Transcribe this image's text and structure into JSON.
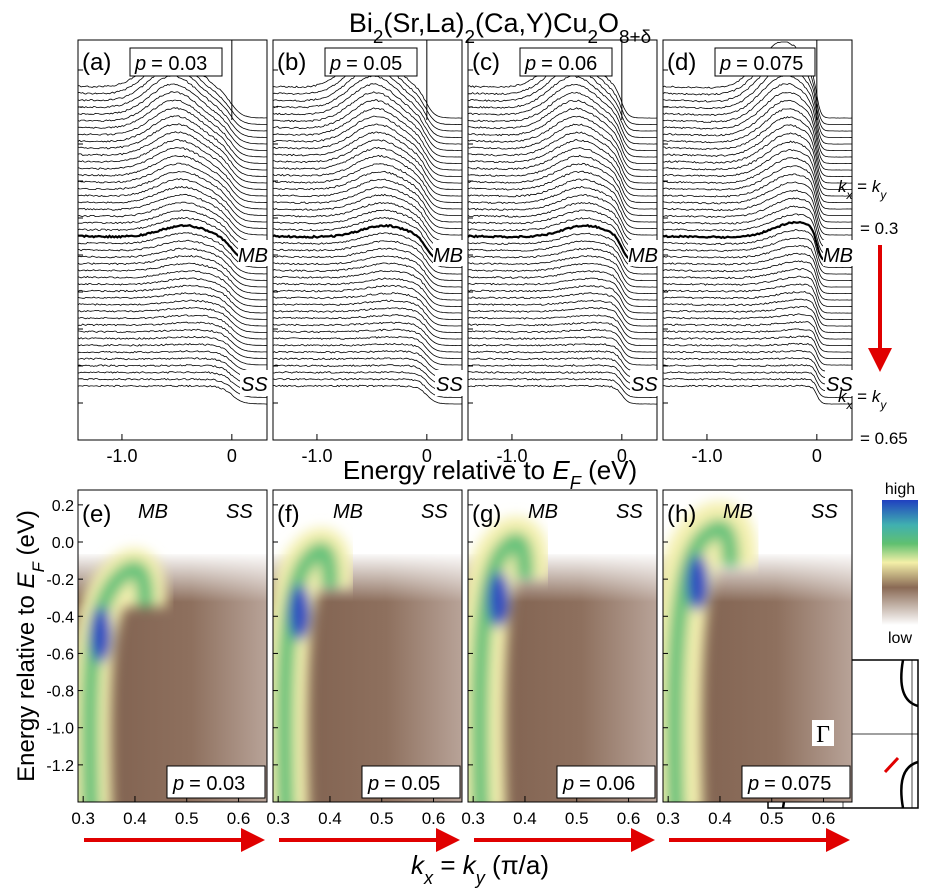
{
  "title": [
    {
      "t": "Bi"
    },
    {
      "t": "2",
      "sub": true
    },
    {
      "t": "(Sr,La)"
    },
    {
      "t": "2",
      "sub": true
    },
    {
      "t": "(Ca,Y)Cu"
    },
    {
      "t": "2",
      "sub": true
    },
    {
      "t": "O"
    },
    {
      "t": "8+δ",
      "sub": true
    }
  ],
  "doping_symbol": "p",
  "edc": {
    "panels": [
      {
        "letter": "(a)",
        "doping": "= 0.03"
      },
      {
        "letter": "(b)",
        "doping": "= 0.05"
      },
      {
        "letter": "(c)",
        "doping": "= 0.06"
      },
      {
        "letter": "(d)",
        "doping": "= 0.075"
      }
    ],
    "xlim": [
      -1.4,
      0.32
    ],
    "xticks": [
      {
        "value": -1,
        "label": "-1.0"
      },
      0
    ],
    "xlabel": [
      {
        "t": "Energy relative to "
      },
      {
        "t": "E",
        "italic": true
      },
      {
        "t": "F",
        "sub": true,
        "italic": true
      },
      {
        "t": " (eV)"
      }
    ],
    "band_labels": [
      "MB",
      "SS"
    ],
    "momentum_label": [
      {
        "t": "k",
        "italic": true
      },
      {
        "t": "x",
        "sub": true,
        "italic": true
      },
      {
        "t": " = "
      },
      {
        "t": "k",
        "italic": true
      },
      {
        "t": "y",
        "sub": true,
        "italic": true
      }
    ],
    "momentum_start": "= 0.3",
    "momentum_end": "= 0.65"
  },
  "maps": {
    "panels": [
      {
        "letter": "(e)",
        "doping": "= 0.03"
      },
      {
        "letter": "(f)",
        "doping": "= 0.05"
      },
      {
        "letter": "(g)",
        "doping": "= 0.06"
      },
      {
        "letter": "(h)",
        "doping": "= 0.075"
      }
    ],
    "xlim": [
      0.29,
      0.655
    ],
    "xticks": [
      0.3,
      0.4,
      0.5,
      0.6
    ],
    "ylim": [
      -1.4,
      0.28
    ],
    "yticks": [
      0.2,
      {
        "value": 0,
        "label": "0.0"
      },
      -0.2,
      -0.4,
      -0.6,
      -0.8,
      {
        "value": -1,
        "label": "-1.0"
      },
      -1.2
    ],
    "xlabel": [
      {
        "t": "k",
        "italic": true
      },
      {
        "t": "x",
        "sub": true,
        "italic": true
      },
      {
        "t": " = "
      },
      {
        "t": "k",
        "italic": true
      },
      {
        "t": "y",
        "sub": true,
        "italic": true
      },
      {
        "t": " (π/a)"
      }
    ],
    "ylabel": [
      {
        "t": "Energy relative to "
      },
      {
        "t": "E",
        "italic": true
      },
      {
        "t": "F",
        "sub": true,
        "italic": true
      },
      {
        "t": " (eV)"
      }
    ],
    "band_labels": [
      "MB",
      "SS"
    ],
    "colorbar": {
      "high": "high",
      "low": "low"
    },
    "inset_label": "Γ"
  }
}
